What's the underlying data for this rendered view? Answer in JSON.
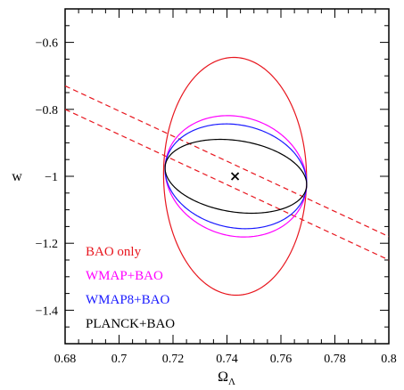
{
  "chart_data": {
    "type": "scatter",
    "xlabel": "Ω",
    "xlabel_sub": "Λ",
    "ylabel": "w",
    "xlim": [
      0.68,
      0.8
    ],
    "ylim": [
      -1.5,
      -0.5
    ],
    "x_ticks": [
      0.68,
      0.7,
      0.72,
      0.74,
      0.76,
      0.78,
      0.8
    ],
    "x_tick_labels": [
      "0.68",
      "0.7",
      "0.72",
      "0.74",
      "0.76",
      "0.78",
      "0.8"
    ],
    "y_ticks": [
      -1.4,
      -1.2,
      -1.0,
      -0.8,
      -0.6
    ],
    "y_tick_labels": [
      "−1.4",
      "−1.2",
      "−1",
      "−0.8",
      "−0.6"
    ],
    "x_minor_step": 0.005,
    "y_minor_step": 0.05,
    "grid": false,
    "legend_position": "bottom-left",
    "fiducial": {
      "x": 0.743,
      "y": -1.0
    },
    "series": [
      {
        "name": "BAO only",
        "color": "#e8161e",
        "ellipse": {
          "cx": 0.743,
          "cy": -1.0,
          "width": 0.053,
          "height": 0.71,
          "tilt": -0.24
        }
      },
      {
        "name": "WMAP+BAO",
        "color": "#ff00ff",
        "ellipse": {
          "cx": 0.7433,
          "cy": -1.0,
          "width": 0.0525,
          "height": 0.36,
          "tilt": -0.8
        }
      },
      {
        "name": "WMAP8+BAO",
        "color": "#1a1aff",
        "ellipse": {
          "cx": 0.7433,
          "cy": -1.0,
          "width": 0.0525,
          "height": 0.31,
          "tilt": -0.82
        }
      },
      {
        "name": "PLANCK+BAO",
        "color": "#000000",
        "ellipse": {
          "cx": 0.7433,
          "cy": -1.0,
          "width": 0.0525,
          "height": 0.215,
          "tilt": -0.94
        }
      }
    ],
    "dashed_lines": [
      {
        "color": "#e8161e",
        "points": [
          [
            0.68,
            -0.73
          ],
          [
            0.8,
            -1.18
          ]
        ]
      },
      {
        "color": "#e8161e",
        "points": [
          [
            0.68,
            -0.8
          ],
          [
            0.8,
            -1.25
          ]
        ]
      }
    ]
  }
}
